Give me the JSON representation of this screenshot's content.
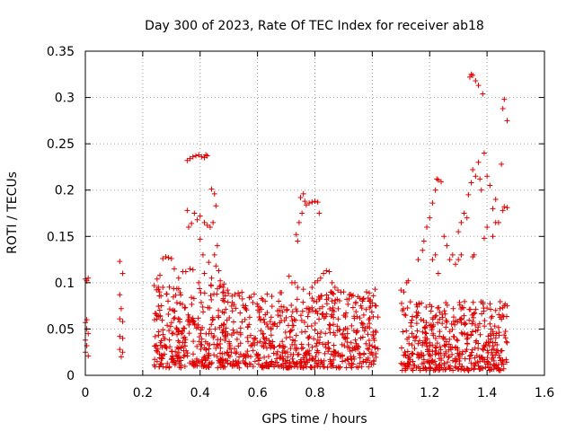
{
  "chart_data": {
    "type": "scatter",
    "title": "Day 300 of 2023, Rate Of TEC Index for receiver ab18",
    "xlabel": "GPS time / hours",
    "ylabel": "ROTI / TECUs",
    "xlim": [
      0,
      1.6
    ],
    "ylim": [
      0,
      0.35
    ],
    "xticks": [
      0,
      0.2,
      0.4,
      0.6,
      0.8,
      1,
      1.2,
      1.4,
      1.6
    ],
    "xtick_labels": [
      "0",
      "0.2",
      "0.4",
      "0.6",
      "0.8",
      "1",
      "1.2",
      "1.4",
      "1.6"
    ],
    "yticks": [
      0,
      0.05,
      0.1,
      0.15,
      0.2,
      0.25,
      0.3,
      0.35
    ],
    "ytick_labels": [
      "0",
      "0.05",
      "0.1",
      "0.15",
      "0.2",
      "0.25",
      "0.3",
      "0.35"
    ],
    "grid": true,
    "marker": "+",
    "color": "#e00000",
    "series": [
      {
        "name": "ROTI",
        "points": [
          [
            0.0,
            0.104
          ],
          [
            0.005,
            0.102
          ],
          [
            0.01,
            0.105
          ],
          [
            0.0,
            0.057
          ],
          [
            0.005,
            0.05
          ],
          [
            0.01,
            0.045
          ],
          [
            0.0,
            0.038
          ],
          [
            0.005,
            0.032
          ],
          [
            0.0,
            0.025
          ],
          [
            0.01,
            0.021
          ],
          [
            0.005,
            0.06
          ],
          [
            0.12,
            0.123
          ],
          [
            0.13,
            0.11
          ],
          [
            0.12,
            0.087
          ],
          [
            0.125,
            0.072
          ],
          [
            0.12,
            0.061
          ],
          [
            0.13,
            0.058
          ],
          [
            0.12,
            0.042
          ],
          [
            0.13,
            0.04
          ],
          [
            0.12,
            0.028
          ],
          [
            0.13,
            0.025
          ],
          [
            0.125,
            0.02
          ],
          [
            0.355,
            0.232
          ],
          [
            0.365,
            0.234
          ],
          [
            0.375,
            0.236
          ],
          [
            0.385,
            0.237
          ],
          [
            0.395,
            0.238
          ],
          [
            0.405,
            0.236
          ],
          [
            0.415,
            0.235
          ],
          [
            0.425,
            0.237
          ],
          [
            0.42,
            0.238
          ],
          [
            0.44,
            0.201
          ],
          [
            0.45,
            0.196
          ],
          [
            0.455,
            0.183
          ],
          [
            0.445,
            0.165
          ],
          [
            0.435,
            0.16
          ],
          [
            0.425,
            0.162
          ],
          [
            0.415,
            0.165
          ],
          [
            0.4,
            0.172
          ],
          [
            0.39,
            0.168
          ],
          [
            0.38,
            0.175
          ],
          [
            0.37,
            0.164
          ],
          [
            0.36,
            0.16
          ],
          [
            0.355,
            0.178
          ],
          [
            0.4,
            0.147
          ],
          [
            0.41,
            0.13
          ],
          [
            0.46,
            0.14
          ],
          [
            0.45,
            0.13
          ],
          [
            0.75,
            0.192
          ],
          [
            0.76,
            0.196
          ],
          [
            0.765,
            0.188
          ],
          [
            0.77,
            0.184
          ],
          [
            0.78,
            0.186
          ],
          [
            0.79,
            0.187
          ],
          [
            0.8,
            0.188
          ],
          [
            0.81,
            0.187
          ],
          [
            0.815,
            0.175
          ],
          [
            0.755,
            0.175
          ],
          [
            0.745,
            0.165
          ],
          [
            0.735,
            0.152
          ],
          [
            0.74,
            0.145
          ],
          [
            1.16,
            0.125
          ],
          [
            1.18,
            0.145
          ],
          [
            1.19,
            0.16
          ],
          [
            1.2,
            0.17
          ],
          [
            1.21,
            0.186
          ],
          [
            1.22,
            0.2
          ],
          [
            1.23,
            0.211
          ],
          [
            1.24,
            0.209
          ],
          [
            1.225,
            0.212
          ],
          [
            1.25,
            0.15
          ],
          [
            1.26,
            0.14
          ],
          [
            1.27,
            0.125
          ],
          [
            1.28,
            0.13
          ],
          [
            1.29,
            0.12
          ],
          [
            1.3,
            0.155
          ],
          [
            1.31,
            0.165
          ],
          [
            1.32,
            0.175
          ],
          [
            1.33,
            0.17
          ],
          [
            1.335,
            0.195
          ],
          [
            1.345,
            0.208
          ],
          [
            1.35,
            0.222
          ],
          [
            1.36,
            0.215
          ],
          [
            1.37,
            0.23
          ],
          [
            1.375,
            0.212
          ],
          [
            1.38,
            0.2
          ],
          [
            1.39,
            0.24
          ],
          [
            1.4,
            0.215
          ],
          [
            1.41,
            0.205
          ],
          [
            1.42,
            0.18
          ],
          [
            1.43,
            0.19
          ],
          [
            1.34,
            0.322
          ],
          [
            1.345,
            0.325
          ],
          [
            1.35,
            0.324
          ],
          [
            1.36,
            0.318
          ],
          [
            1.37,
            0.313
          ],
          [
            1.385,
            0.304
          ],
          [
            1.46,
            0.298
          ],
          [
            1.455,
            0.288
          ],
          [
            1.47,
            0.275
          ],
          [
            1.45,
            0.228
          ],
          [
            1.46,
            0.182
          ],
          [
            1.47,
            0.181
          ],
          [
            1.455,
            0.178
          ],
          [
            1.44,
            0.165
          ],
          [
            1.43,
            0.165
          ],
          [
            1.42,
            0.15
          ],
          [
            1.4,
            0.16
          ],
          [
            1.39,
            0.148
          ],
          [
            1.35,
            0.128
          ],
          [
            1.355,
            0.13
          ],
          [
            1.31,
            0.13
          ],
          [
            1.3,
            0.125
          ],
          [
            1.22,
            0.13
          ],
          [
            1.21,
            0.125
          ],
          [
            1.23,
            0.11
          ],
          [
            1.175,
            0.135
          ],
          [
            0.27,
            0.126
          ],
          [
            0.28,
            0.128
          ],
          [
            0.29,
            0.127
          ],
          [
            0.3,
            0.126
          ],
          [
            0.31,
            0.115
          ],
          [
            0.325,
            0.105
          ],
          [
            0.34,
            0.112
          ],
          [
            0.35,
            0.112
          ],
          [
            0.365,
            0.115
          ],
          [
            0.375,
            0.114
          ],
          [
            0.26,
            0.108
          ],
          [
            0.25,
            0.104
          ],
          [
            0.24,
            0.097
          ],
          [
            0.255,
            0.093
          ],
          [
            0.27,
            0.095
          ],
          [
            0.44,
            0.105
          ],
          [
            0.455,
            0.118
          ],
          [
            0.465,
            0.113
          ],
          [
            0.47,
            0.102
          ],
          [
            0.48,
            0.095
          ],
          [
            0.43,
            0.122
          ],
          [
            0.415,
            0.11
          ],
          [
            0.395,
            0.1
          ],
          [
            0.71,
            0.107
          ],
          [
            0.72,
            0.1
          ],
          [
            0.73,
            0.1
          ],
          [
            0.74,
            0.095
          ],
          [
            0.76,
            0.093
          ],
          [
            0.79,
            0.095
          ],
          [
            0.8,
            0.1
          ],
          [
            0.81,
            0.102
          ],
          [
            0.82,
            0.105
          ],
          [
            0.83,
            0.11
          ],
          [
            0.84,
            0.113
          ],
          [
            0.85,
            0.112
          ],
          [
            0.86,
            0.1
          ],
          [
            0.87,
            0.095
          ],
          [
            0.88,
            0.092
          ],
          [
            0.9,
            0.09
          ],
          [
            0.92,
            0.087
          ],
          [
            0.95,
            0.085
          ],
          [
            0.97,
            0.083
          ],
          [
            0.99,
            0.08
          ],
          [
            1.0,
            0.078
          ],
          [
            1.01,
            0.093
          ],
          [
            0.98,
            0.09
          ],
          [
            0.965,
            0.082
          ],
          [
            1.1,
            0.092
          ],
          [
            1.11,
            0.09
          ],
          [
            1.12,
            0.1
          ],
          [
            1.125,
            0.102
          ],
          [
            1.46,
            0.075
          ],
          [
            1.455,
            0.073
          ],
          [
            1.47,
            0.075
          ],
          [
            1.445,
            0.072
          ],
          [
            1.43,
            0.07
          ]
        ],
        "clusters": [
          {
            "x": [
              0.24,
              0.5
            ],
            "y": [
              0.008,
              0.1
            ],
            "count": 330
          },
          {
            "x": [
              0.5,
              1.02
            ],
            "y": [
              0.008,
              0.09
            ],
            "count": 600
          },
          {
            "x": [
              1.1,
              1.47
            ],
            "y": [
              0.005,
              0.08
            ],
            "count": 460
          }
        ]
      }
    ]
  }
}
